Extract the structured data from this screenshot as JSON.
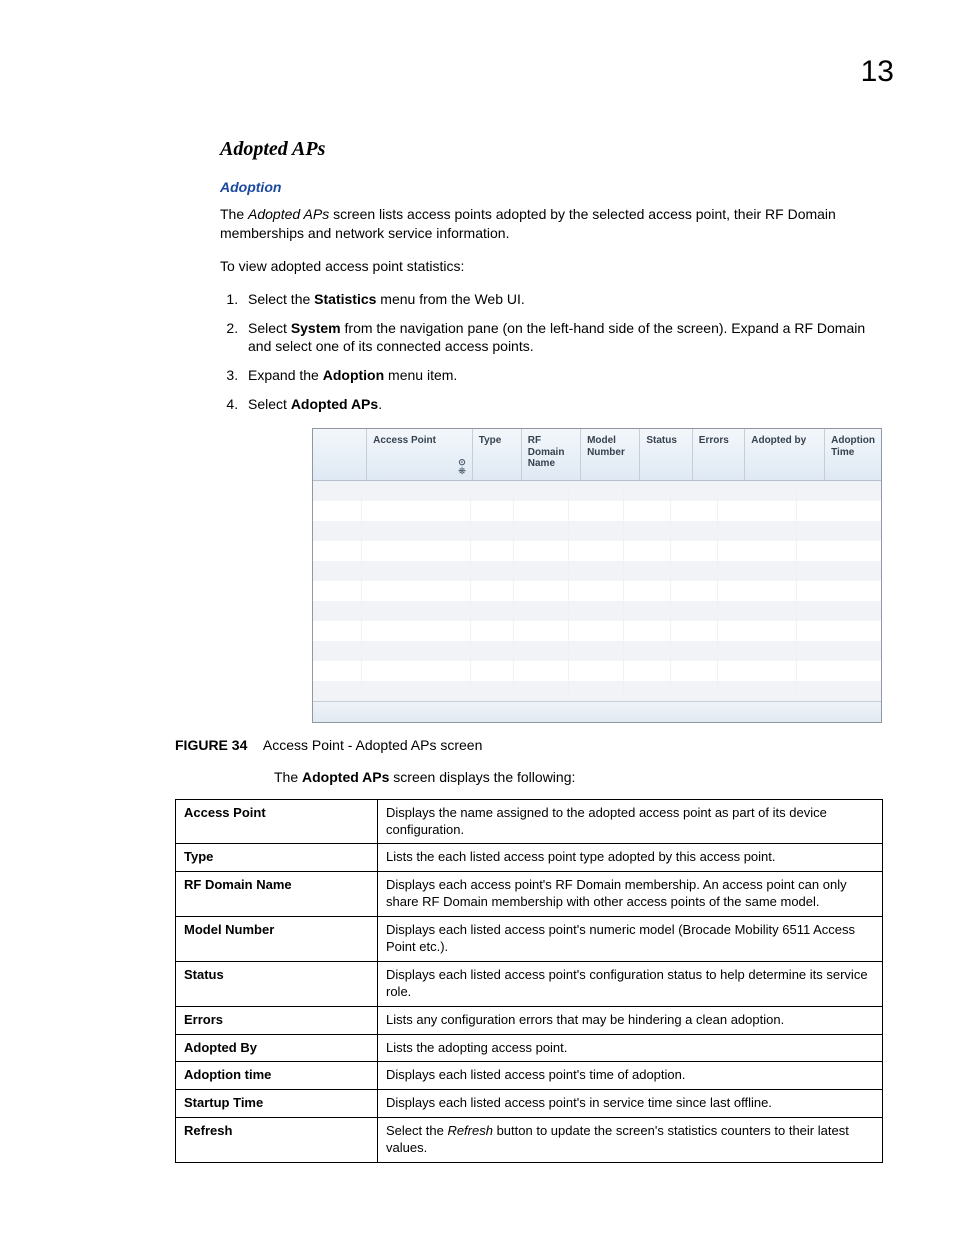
{
  "page_number": "13",
  "section_title": "Adopted APs",
  "subhead": "Adoption",
  "intro_para_pre": "The ",
  "intro_para_em": "Adopted APs",
  "intro_para_post": " screen lists access points adopted by the selected access point, their RF Domain memberships and network service information.",
  "view_line": "To view adopted access point statistics:",
  "steps": [
    {
      "pre": "Select the ",
      "bold": "Statistics",
      "post": " menu from the Web UI."
    },
    {
      "pre": "Select ",
      "bold": "System",
      "post": " from the navigation pane (on the left-hand side of the screen). Expand a RF Domain and select one of its connected access points."
    },
    {
      "pre": "Expand the ",
      "bold": "Adoption",
      "post": " menu item."
    },
    {
      "pre": "Select ",
      "bold": "Adopted APs",
      "post": "."
    }
  ],
  "shot": {
    "columns": [
      "Access Point",
      "Type",
      "RF Domain Name",
      "Model Number",
      "Status",
      "Errors",
      "Adopted by",
      "Adoption Time"
    ],
    "row_count": 11
  },
  "figure": {
    "label": "FIGURE 34",
    "caption": "Access Point - Adopted APs screen"
  },
  "lead_pre": "The ",
  "lead_bold": "Adopted APs",
  "lead_post": " screen displays the following:",
  "def_rows": [
    {
      "k": "Access Point",
      "v": "Displays the name assigned to the adopted access point as part of its device configuration."
    },
    {
      "k": "Type",
      "v": "Lists the each listed access point type adopted by this access point."
    },
    {
      "k": "RF Domain Name",
      "v": "Displays each access point's RF Domain membership. An access point can only share RF Domain membership with other access points of the same model."
    },
    {
      "k": "Model Number",
      "v": "Displays each listed access point's numeric model (Brocade Mobility 6511 Access Point etc.)."
    },
    {
      "k": "Status",
      "v": "Displays each listed access point's configuration status to help determine its service role."
    },
    {
      "k": "Errors",
      "v": "Lists any configuration errors that may be hindering a clean adoption."
    },
    {
      "k": "Adopted By",
      "v": "Lists the adopting access point."
    },
    {
      "k": "Adoption time",
      "v": "Displays each listed access point's time of adoption."
    },
    {
      "k": "Startup Time",
      "v": "Displays each listed access point's in service time since last offline."
    }
  ],
  "refresh_row": {
    "k": "Refresh",
    "pre": "Select the ",
    "em": "Refresh",
    "post": " button to update the screen's statistics counters to their latest values."
  }
}
